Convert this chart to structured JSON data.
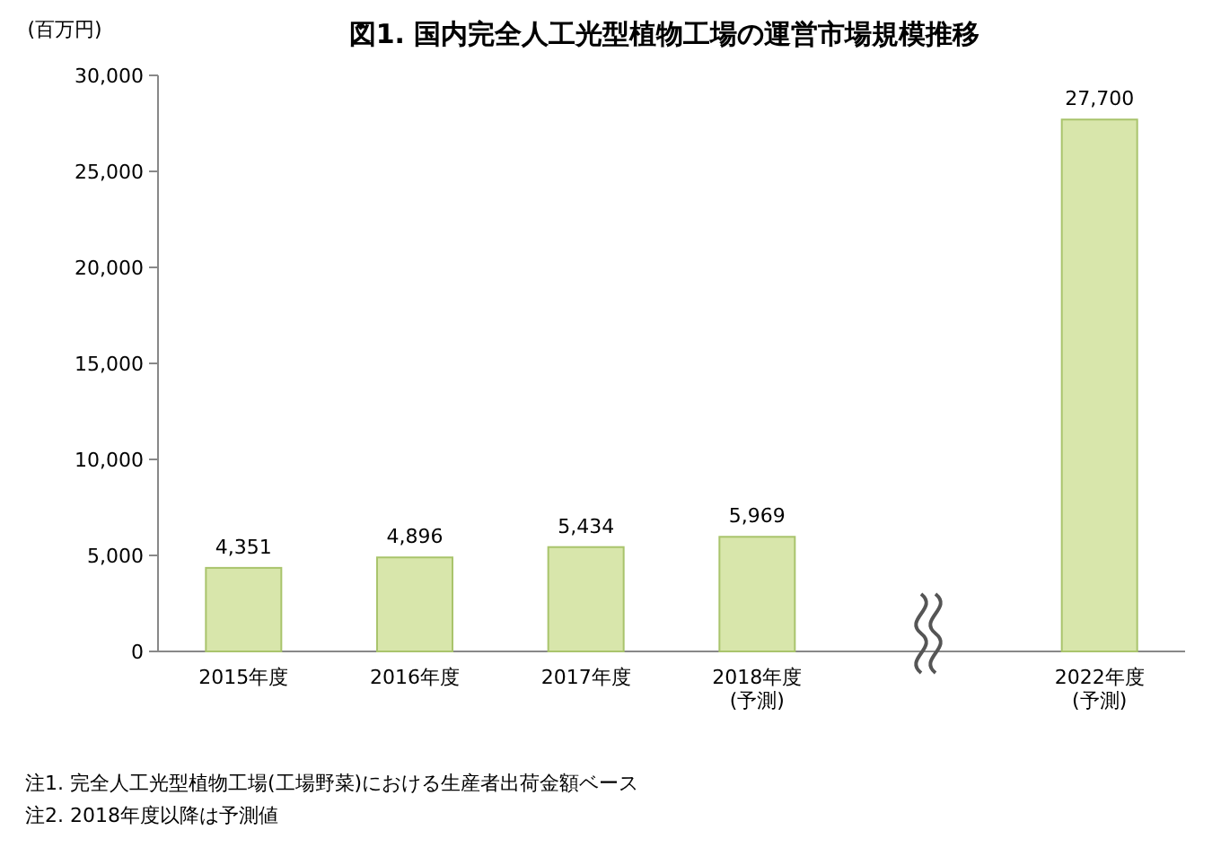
{
  "chart_data": {
    "type": "bar",
    "title": "図1. 国内完全人工光型植物工場の運営市場規模推移",
    "ylabel": "(百万円)",
    "categories": [
      "2015年度",
      "2016年度",
      "2017年度",
      "2018年度\n(予測)",
      null,
      "2022年度\n(予測)"
    ],
    "values": [
      4351,
      4896,
      5434,
      5969,
      null,
      27700
    ],
    "value_labels": [
      "4,351",
      "4,896",
      "5,434",
      "5,969",
      null,
      "27,700"
    ],
    "color": "#d8e6ab",
    "ylim": [
      0,
      30000
    ],
    "yticks": [
      0,
      {
        "value": 5000,
        "label": "5,000"
      },
      {
        "value": 10000,
        "label": "10,000"
      },
      {
        "value": 15000,
        "label": "15,000"
      },
      {
        "value": 20000,
        "label": "20,000"
      },
      {
        "value": 25000,
        "label": "25,000"
      },
      {
        "value": 30000,
        "label": "30,000"
      }
    ],
    "grid": false,
    "annotations": [
      "注1. 完全人工光型植物工場(工場野菜)における生産者出荷金額ベース",
      "注2. 2018年度以降は予測値"
    ]
  }
}
